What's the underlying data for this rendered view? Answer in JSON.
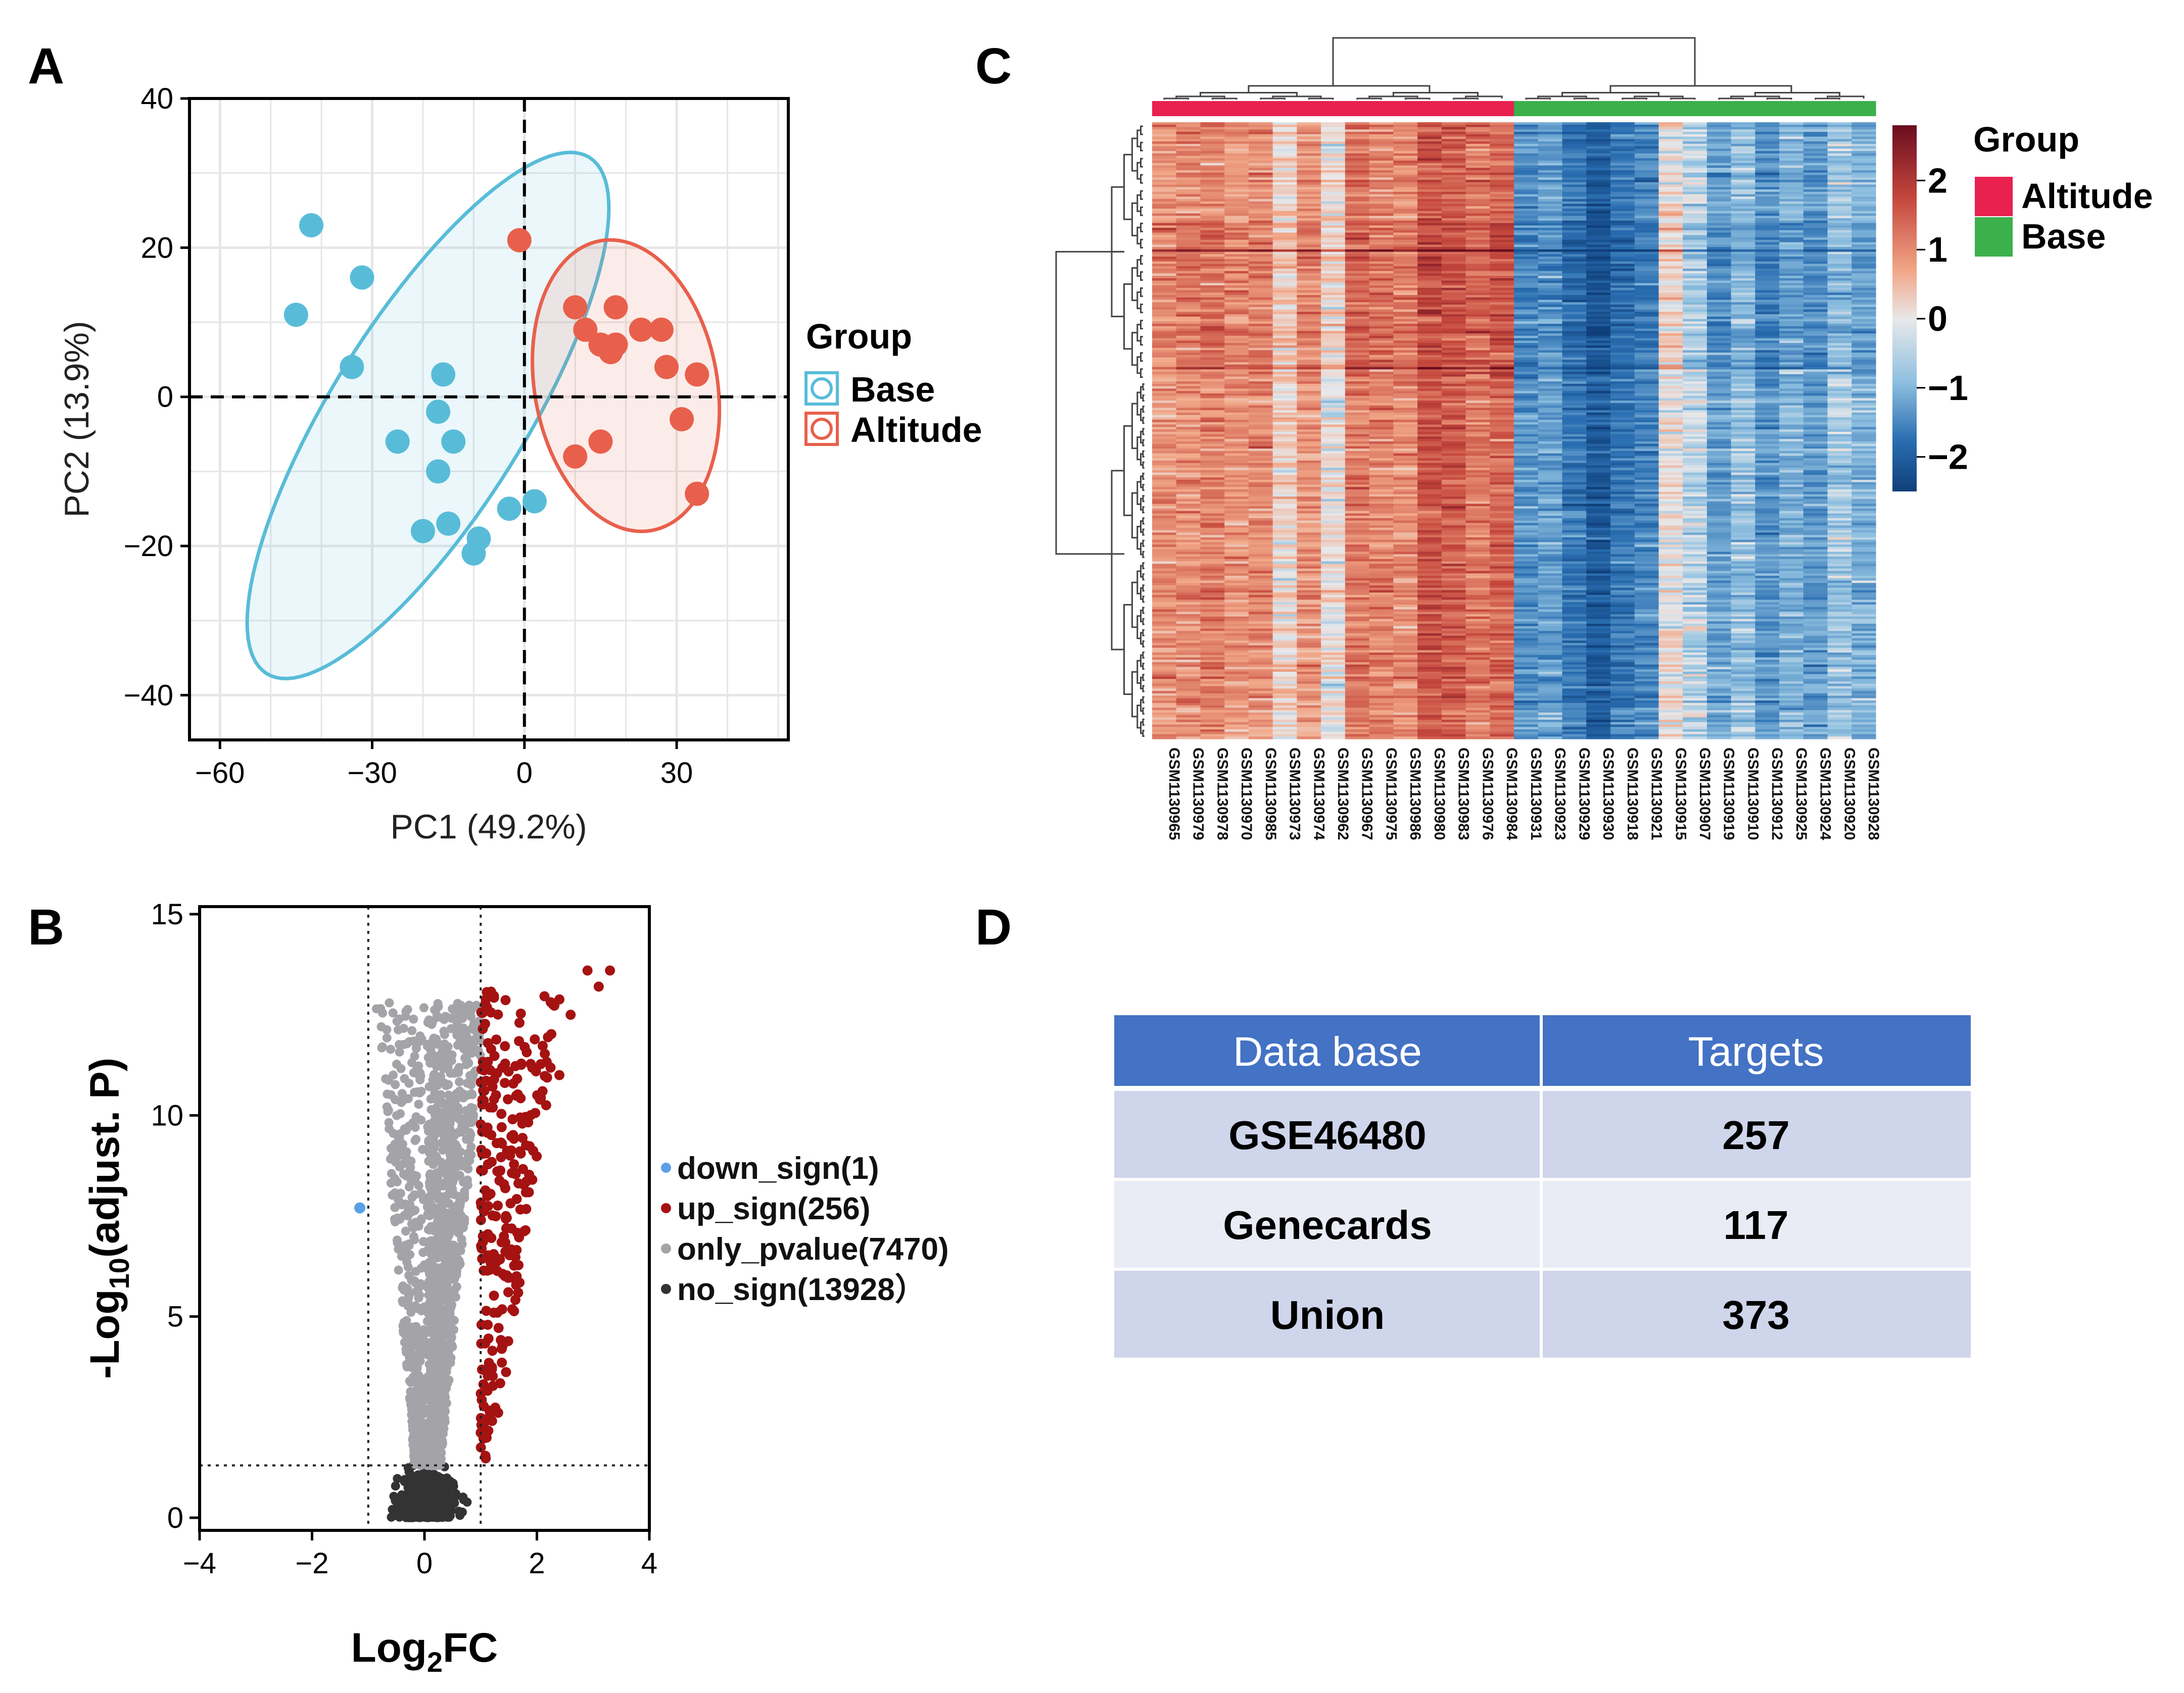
{
  "chart_data": [
    {
      "panel": "A",
      "type": "scatter",
      "xlabel": "PC1 (49.2%)",
      "ylabel": "PC2 (13.9%)",
      "xlim": [
        -66,
        52
      ],
      "ylim": [
        -46,
        40
      ],
      "xticks": [
        -60,
        -30,
        0,
        30
      ],
      "yticks": [
        40,
        20,
        0,
        -20,
        -40
      ],
      "legend_title": "Group",
      "colors": {
        "Base": "#58bcd8",
        "Altitude": "#e8604c"
      },
      "series": [
        {
          "name": "Base",
          "points": [
            [
              -42,
              23
            ],
            [
              -45,
              11
            ],
            [
              -32,
              16
            ],
            [
              -34,
              4
            ],
            [
              -16,
              3
            ],
            [
              -17,
              -2
            ],
            [
              -25,
              -6
            ],
            [
              -14,
              -6
            ],
            [
              -17,
              -10
            ],
            [
              -15,
              -17
            ],
            [
              -20,
              -18
            ],
            [
              -9,
              -19
            ],
            [
              -10,
              -21
            ],
            [
              -3,
              -15
            ],
            [
              2,
              -14
            ]
          ],
          "ellipse": {
            "cx": -19,
            "cy": -2.5,
            "rx": 60,
            "ry": 19,
            "angle_deg": 58
          }
        },
        {
          "name": "Altitude",
          "points": [
            [
              -1,
              21
            ],
            [
              10,
              12
            ],
            [
              18,
              12
            ],
            [
              12,
              9
            ],
            [
              15,
              7
            ],
            [
              18,
              7
            ],
            [
              23,
              9
            ],
            [
              27,
              9
            ],
            [
              17,
              6
            ],
            [
              28,
              4
            ],
            [
              34,
              3
            ],
            [
              31,
              -3
            ],
            [
              15,
              -6
            ],
            [
              10,
              -8
            ],
            [
              34,
              -13
            ]
          ],
          "ellipse": {
            "cx": 20,
            "cy": 1.5,
            "rx": 29,
            "ry": 18,
            "angle_deg": -80
          }
        }
      ]
    },
    {
      "panel": "B",
      "type": "scatter",
      "xlabel_main": "Log",
      "xlabel_sub": "2",
      "xlabel_tail": "FC",
      "ylabel_main": "-Log",
      "ylabel_sub": "10",
      "ylabel_tail": "(adjust. P)",
      "xlim": [
        -4,
        4
      ],
      "ylim": [
        0,
        15
      ],
      "xticks": [
        -4,
        -2,
        0,
        2,
        4
      ],
      "yticks": [
        15,
        10,
        5,
        0
      ],
      "thresholds": {
        "log2fc": [
          -1,
          1
        ],
        "neg_log10_p": 1.3
      },
      "colors": {
        "down_sign": "#5aa0e6",
        "up_sign": "#a51212",
        "only_pvalue": "#a4a4a8",
        "no_sign": "#333333"
      },
      "legend": [
        "down_sign(1)",
        "up_sign(256)",
        "only_pvalue(7470)",
        "no_sign(13928）"
      ],
      "series": [
        {
          "name": "down_sign",
          "count": 1,
          "points": [
            [
              -1.15,
              7.7
            ]
          ]
        },
        {
          "name": "up_sign",
          "count": 256,
          "range_log2fc": [
            1.0,
            3.3
          ],
          "range_neg_log10_p": [
            1.3,
            13.7
          ]
        },
        {
          "name": "only_pvalue",
          "count": 7470,
          "range_log2fc": [
            -1.0,
            1.0
          ],
          "range_neg_log10_p": [
            1.3,
            12.8
          ]
        },
        {
          "name": "no_sign",
          "count": 13928,
          "range_log2fc": [
            -0.6,
            0.9
          ],
          "range_neg_log10_p": [
            0,
            1.3
          ]
        }
      ]
    },
    {
      "panel": "C",
      "type": "heatmap",
      "columns": [
        "GSM1130965",
        "GSM1130979",
        "GSM1130978",
        "GSM1130970",
        "GSM1130985",
        "GSM1130973",
        "GSM1130974",
        "GSM1130962",
        "GSM1130967",
        "GSM1130975",
        "GSM1130986",
        "GSM1130980",
        "GSM1130983",
        "GSM1130976",
        "GSM1130984",
        "GSM1130931",
        "GSM1130923",
        "GSM1130929",
        "GSM1130930",
        "GSM1130918",
        "GSM1130921",
        "GSM1130915",
        "GSM1130907",
        "GSM1130919",
        "GSM1130910",
        "GSM1130912",
        "GSM1130925",
        "GSM1130924",
        "GSM1130920",
        "GSM1130928"
      ],
      "column_groups": [
        "Altitude",
        "Altitude",
        "Altitude",
        "Altitude",
        "Altitude",
        "Altitude",
        "Altitude",
        "Altitude",
        "Altitude",
        "Altitude",
        "Altitude",
        "Altitude",
        "Altitude",
        "Altitude",
        "Altitude",
        "Base",
        "Base",
        "Base",
        "Base",
        "Base",
        "Base",
        "Base",
        "Base",
        "Base",
        "Base",
        "Base",
        "Base",
        "Base",
        "Base",
        "Base"
      ],
      "column_means": [
        0.9,
        1.0,
        1.1,
        0.9,
        1.0,
        0.2,
        0.9,
        0.1,
        1.2,
        1.1,
        1.0,
        1.6,
        1.5,
        1.2,
        1.4,
        -1.2,
        -1.0,
        -1.5,
        -2.0,
        -1.5,
        -1.3,
        0.1,
        -0.3,
        -1.0,
        -0.6,
        -1.2,
        -0.8,
        -1.1,
        -0.5,
        -0.8
      ],
      "row_count": 257,
      "row_breaks": [
        0.2,
        0.4
      ],
      "color_scale": {
        "min": -2.5,
        "max": 2.8,
        "ticks": [
          2,
          1,
          0,
          -1,
          -2
        ],
        "tick_labels": [
          "2",
          "1",
          "0",
          "−1",
          "−2"
        ],
        "colors": [
          "#0f3f7a",
          "#2a6eb1",
          "#8fc0e0",
          "#e8e8ea",
          "#f2a889",
          "#c5473d",
          "#6a0d1e"
        ]
      },
      "legend_title": "Group",
      "group_colors": {
        "Altitude": "#e8214f",
        "Base": "#3cb04a"
      },
      "groups": [
        "Altitude",
        "Base"
      ]
    }
  ],
  "panels": {
    "a": "A",
    "b": "B",
    "c": "C",
    "d": "D"
  },
  "table": {
    "headers": [
      "Data base",
      "Targets"
    ],
    "rows": [
      [
        "GSE46480",
        "257"
      ],
      [
        "Genecards",
        "117"
      ],
      [
        "Union",
        "373"
      ]
    ],
    "header_color": "#4472c4",
    "row_colors": [
      "#cfd5ea",
      "#e9ebf5",
      "#cfd5ea"
    ]
  }
}
